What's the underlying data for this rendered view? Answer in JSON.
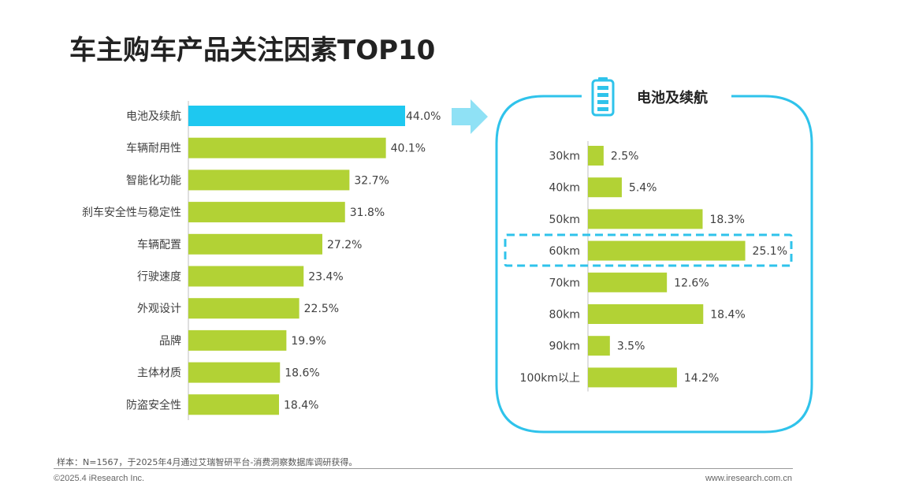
{
  "title": "车主购车产品关注因素TOP10",
  "chart_data": [
    {
      "type": "bar",
      "orientation": "horizontal",
      "categories": [
        "电池及续航",
        "车辆耐用性",
        "智能化功能",
        "刹车安全性与稳定性",
        "车辆配置",
        "行驶速度",
        "外观设计",
        "品牌",
        "主体材质",
        "防盗安全性"
      ],
      "values": [
        44.0,
        40.1,
        32.7,
        31.8,
        27.2,
        23.4,
        22.5,
        19.9,
        18.6,
        18.4
      ],
      "labels": [
        "44.0%",
        "40.1%",
        "32.7%",
        "31.8%",
        "27.2%",
        "23.4%",
        "22.5%",
        "19.9%",
        "18.6%",
        "18.4%"
      ],
      "unit": "%",
      "highlight_index": 0,
      "highlight_color": "#1ec8f0",
      "bar_color": "#b2d235"
    },
    {
      "type": "bar",
      "orientation": "horizontal",
      "title": "电池及续航",
      "categories": [
        "30km",
        "40km",
        "50km",
        "60km",
        "70km",
        "80km",
        "90km",
        "100km以上"
      ],
      "values": [
        2.5,
        5.4,
        18.3,
        25.1,
        12.6,
        18.4,
        3.5,
        14.2
      ],
      "labels": [
        "2.5%",
        "5.4%",
        "18.3%",
        "25.1%",
        "12.6%",
        "18.4%",
        "3.5%",
        "14.2%"
      ],
      "unit": "%",
      "highlight_index": 3,
      "bar_color": "#b2d235",
      "frame_color": "#2fc3eb"
    }
  ],
  "footer": {
    "sample_note": "样本：N=1567，于2025年4月通过艾瑞智研平台-消费洞察数据库调研获得。",
    "copyright": "©2025.4 iResearch Inc.",
    "website": "www.iresearch.com.cn"
  }
}
